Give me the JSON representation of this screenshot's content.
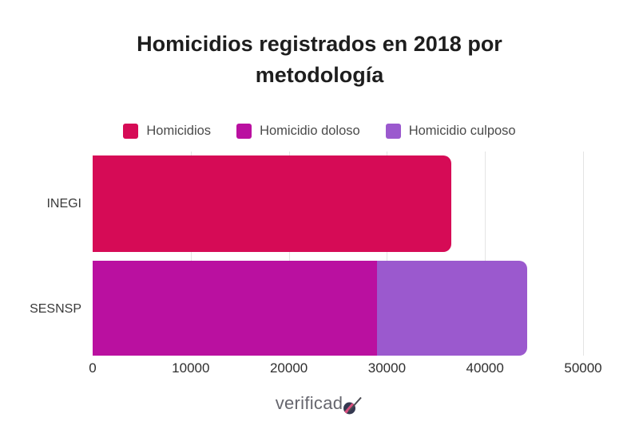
{
  "title": "Homicidios registrados en 2018 por metodología",
  "legend": [
    {
      "label": "Homicidios",
      "color": "#d60b56"
    },
    {
      "label": "Homicidio doloso",
      "color": "#ba10a0"
    },
    {
      "label": "Homicidio culposo",
      "color": "#9b59ce"
    }
  ],
  "chart_data": {
    "type": "bar",
    "orientation": "horizontal",
    "stacked": true,
    "title": "Homicidios registrados en 2018 por metodología",
    "categories": [
      "INEGI",
      "SESNSP"
    ],
    "series": [
      {
        "name": "Homicidios",
        "color": "#d60b56",
        "values": [
          36600,
          0
        ]
      },
      {
        "name": "Homicidio doloso",
        "color": "#ba10a0",
        "values": [
          0,
          29000
        ]
      },
      {
        "name": "Homicidio culposo",
        "color": "#9b59ce",
        "values": [
          0,
          15300
        ]
      }
    ],
    "xlim": [
      0,
      50000
    ],
    "x_ticks": [
      0,
      10000,
      20000,
      30000,
      40000,
      50000
    ],
    "x_tick_labels": [
      "0",
      "10000",
      "20000",
      "30000",
      "40000",
      "50000"
    ],
    "grid": "vertical",
    "legend_position": "top"
  },
  "footer": {
    "logo_text": "verificado"
  },
  "colors": {
    "background": "#ffffff",
    "title_text": "#1e1e1e",
    "axis_text": "#2f2f2f",
    "category_text": "#3a3a3a",
    "legend_text": "#4a4a4a",
    "gridline": "#e4e4e4",
    "logo_text": "#66666e",
    "logo_circle": "#343850",
    "logo_accent_pink": "#d94f7e"
  }
}
